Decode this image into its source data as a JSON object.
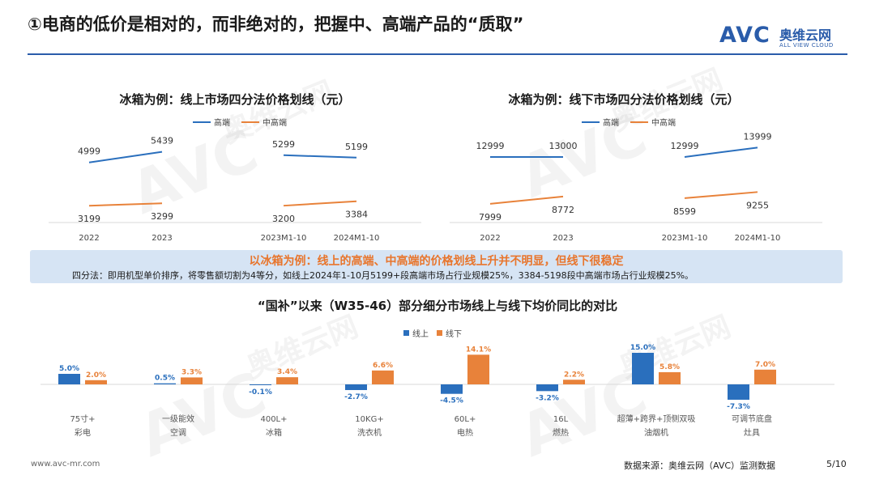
{
  "header": {
    "title": "①电商的低价是相对的，而非绝对的，把握中、高端产品的“质取”",
    "logo_mark": "AVC",
    "logo_cn": "奥维云网",
    "logo_en": "ALL VIEW CLOUD"
  },
  "colors": {
    "high": "#2a6fbd",
    "mid": "#e8823a",
    "accent": "#2a5caa",
    "callout_bg": "#d6e4f4"
  },
  "watermark": {
    "mark": "AVC",
    "cn": "奥维云网",
    "en": "ALL VIEW CLOUD"
  },
  "chart_data": [
    {
      "type": "line",
      "title": "冰箱为例：线上市场四分法价格划线（元）",
      "legend": [
        "高端",
        "中高端"
      ],
      "groups": [
        {
          "categories": [
            "2022",
            "2023"
          ],
          "series": [
            {
              "name": "高端",
              "values": [
                4999,
                5439
              ]
            },
            {
              "name": "中高端",
              "values": [
                3199,
                3299
              ]
            }
          ]
        },
        {
          "categories": [
            "2023M1-10",
            "2024M1-10"
          ],
          "series": [
            {
              "name": "高端",
              "values": [
                5299,
                5199
              ]
            },
            {
              "name": "中高端",
              "values": [
                3200,
                3384
              ]
            }
          ]
        }
      ],
      "ylim": [
        2500,
        6200
      ]
    },
    {
      "type": "line",
      "title": "冰箱为例：线下市场四分法价格划线（元）",
      "legend": [
        "高端",
        "中高端"
      ],
      "groups": [
        {
          "categories": [
            "2022",
            "2023"
          ],
          "series": [
            {
              "name": "高端",
              "values": [
                12999,
                13000
              ]
            },
            {
              "name": "中高端",
              "values": [
                7999,
                8772
              ]
            }
          ]
        },
        {
          "categories": [
            "2023M1-10",
            "2024M1-10"
          ],
          "series": [
            {
              "name": "高端",
              "values": [
                12999,
                13999
              ]
            },
            {
              "name": "中高端",
              "values": [
                8599,
                9255
              ]
            }
          ]
        }
      ],
      "ylim": [
        6000,
        15500
      ]
    },
    {
      "type": "bar",
      "title": "“国补”以来（W35-46）部分细分市场线上与线下均价同比的对比",
      "categories": [
        [
          "75寸+",
          "彩电"
        ],
        [
          "一级能效",
          "空调"
        ],
        [
          "400L+",
          "冰箱"
        ],
        [
          "10KG+",
          "洗衣机"
        ],
        [
          "60L+",
          "电热"
        ],
        [
          "16L",
          "燃热"
        ],
        [
          "超薄+跨界+顶侧双吸",
          "油烟机"
        ],
        [
          "可调节底盘",
          "灶具"
        ]
      ],
      "series": [
        {
          "name": "线上",
          "values": [
            5.0,
            0.5,
            -0.1,
            -2.7,
            -4.5,
            -3.2,
            15.0,
            -7.3
          ],
          "labels": [
            "5.0%",
            "0.5%",
            "-0.1%",
            "-2.7%",
            "-4.5%",
            "-3.2%",
            "15.0%",
            "-7.3%"
          ]
        },
        {
          "name": "线下",
          "values": [
            2.0,
            3.3,
            3.4,
            6.6,
            14.1,
            2.2,
            5.8,
            7.0
          ],
          "labels": [
            "2.0%",
            "3.3%",
            "3.4%",
            "6.6%",
            "14.1%",
            "2.2%",
            "5.8%",
            "7.0%"
          ]
        }
      ],
      "ylim": [
        -8,
        16
      ]
    }
  ],
  "callout": {
    "headline": "以冰箱为例：线上的高端、中高端的价格划线上升并不明显，但线下很稳定",
    "note": "四分法：即用机型单价排序，将零售额切割为4等分，如线上2024年1-10月5199+段高端市场占行业规模25%，3384-5198段中高端市场占行业规模25%。"
  },
  "footer": {
    "url": "www.avc-mr.com",
    "source": "数据来源：奥维云网（AVC）监测数据",
    "page": "5/10"
  }
}
